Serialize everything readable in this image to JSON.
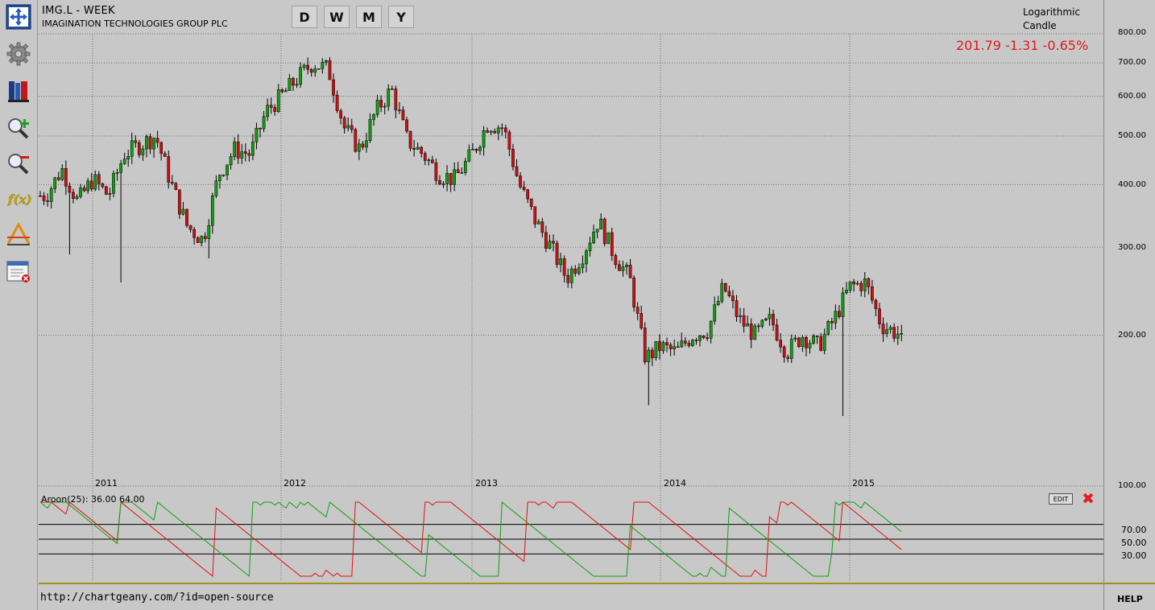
{
  "header": {
    "symbol_title": "IMG.L - WEEK",
    "company_name": "IMAGINATION TECHNOLOGIES GROUP PLC"
  },
  "periods": [
    "D",
    "W",
    "M",
    "Y"
  ],
  "scale": {
    "mode": "Logarithmic",
    "type": "Candle"
  },
  "quote": "201.79 -1.31 -0.65%",
  "toolbar": [
    {
      "name": "fullscreen-icon"
    },
    {
      "name": "gear-icon"
    },
    {
      "name": "book-icon"
    },
    {
      "name": "zoom-in-icon"
    },
    {
      "name": "zoom-out-icon"
    },
    {
      "name": "function-icon"
    },
    {
      "name": "drawing-tool-icon"
    },
    {
      "name": "window-close-icon"
    }
  ],
  "price_axis": [
    "800.00",
    "700.00",
    "600.00",
    "500.00",
    "400.00",
    "300.00",
    "200.00",
    "100.00"
  ],
  "oscillator": {
    "label": "Aroon(25): 36.00 64.00",
    "edit_label": "EDIT",
    "close_label": "✖",
    "levels": [
      "70.00",
      "50.00",
      "30.00"
    ]
  },
  "footer": {
    "url": "http://chartgeany.com/?id=open-source",
    "help": "HELP"
  },
  "colors": {
    "up": "#10a010",
    "down": "#d01010",
    "aroon_up": "#10a010",
    "aroon_down": "#e01010",
    "quote": "#e01818"
  },
  "chart_data": [
    {
      "type": "candlestick",
      "title": "IMG.L - WEEK",
      "y_scale": "log",
      "ylim": [
        100,
        800
      ],
      "x_ticks": [
        "2011",
        "2012",
        "2013",
        "2014",
        "2015"
      ],
      "y_ticks": [
        100,
        200,
        300,
        400,
        500,
        600,
        700,
        800
      ],
      "grid": true,
      "last": 201.79,
      "close_path": [
        [
          "2010-10",
          380
        ],
        [
          "2010-11",
          430
        ],
        [
          "2010-12",
          370
        ],
        [
          "2011-01",
          410
        ],
        [
          "2011-02",
          380
        ],
        [
          "2011-03",
          460
        ],
        [
          "2011-04",
          480
        ],
        [
          "2011-05",
          500
        ],
        [
          "2011-06",
          400
        ],
        [
          "2011-07",
          330
        ],
        [
          "2011-08",
          310
        ],
        [
          "2011-09",
          420
        ],
        [
          "2011-10",
          470
        ],
        [
          "2011-11",
          460
        ],
        [
          "2011-12",
          560
        ],
        [
          "2012-01",
          600
        ],
        [
          "2012-02",
          650
        ],
        [
          "2012-03",
          700
        ],
        [
          "2012-04",
          680
        ],
        [
          "2012-05",
          520
        ],
        [
          "2012-06",
          470
        ],
        [
          "2012-07",
          560
        ],
        [
          "2012-08",
          620
        ],
        [
          "2012-09",
          490
        ],
        [
          "2012-10",
          460
        ],
        [
          "2012-11",
          420
        ],
        [
          "2012-12",
          410
        ],
        [
          "2013-01",
          460
        ],
        [
          "2013-02",
          530
        ],
        [
          "2013-03",
          520
        ],
        [
          "2013-04",
          400
        ],
        [
          "2013-05",
          340
        ],
        [
          "2013-06",
          300
        ],
        [
          "2013-07",
          260
        ],
        [
          "2013-08",
          290
        ],
        [
          "2013-09",
          340
        ],
        [
          "2013-10",
          290
        ],
        [
          "2013-11",
          260
        ],
        [
          "2013-12",
          180
        ],
        [
          "2014-01",
          190
        ],
        [
          "2014-02",
          185
        ],
        [
          "2014-03",
          200
        ],
        [
          "2014-04",
          205
        ],
        [
          "2014-05",
          250
        ],
        [
          "2014-06",
          215
        ],
        [
          "2014-07",
          200
        ],
        [
          "2014-08",
          215
        ],
        [
          "2014-09",
          185
        ],
        [
          "2014-10",
          200
        ],
        [
          "2014-11",
          190
        ],
        [
          "2014-12",
          215
        ],
        [
          "2015-01",
          250
        ],
        [
          "2015-02",
          255
        ],
        [
          "2015-03",
          210
        ],
        [
          "2015-04",
          201.79
        ]
      ]
    },
    {
      "type": "line",
      "title": "Aroon(25)",
      "ylim": [
        0,
        100
      ],
      "levels": [
        70,
        50,
        30
      ],
      "series": [
        {
          "name": "Aroon Up",
          "last": 64
        },
        {
          "name": "Aroon Down",
          "last": 36
        }
      ]
    }
  ]
}
